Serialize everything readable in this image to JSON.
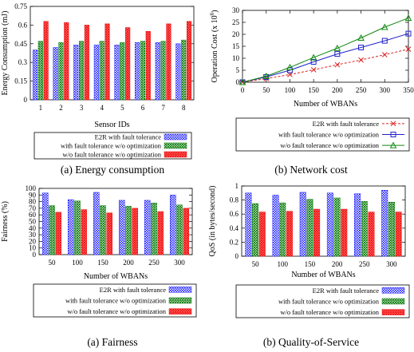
{
  "colors": {
    "blue": "#1f1fff",
    "green": "#0a7a0a",
    "red": "#ee1111",
    "lineRed": "#dd2222",
    "lineBlue": "#2222cc",
    "lineGreen": "#118811"
  },
  "captions": [
    "(a) Energy consumption",
    "(b) Network cost",
    "(a) Fairness",
    "(b) Quality-of-Service"
  ],
  "chart_data": [
    {
      "type": "bar",
      "ylabel": "Energy Consumption (mJ)",
      "xlabel": "Sensor IDs",
      "categories": [
        "1",
        "2",
        "3",
        "4",
        "5",
        "6",
        "7",
        "8"
      ],
      "yticks": [
        "0",
        "0.15",
        "0.3",
        "0.45",
        "0.6",
        "0.75"
      ],
      "ylim": [
        0,
        0.75
      ],
      "series": [
        {
          "name": "E2R with fault tolerance",
          "values": [
            0.4,
            0.42,
            0.44,
            0.44,
            0.44,
            0.46,
            0.46,
            0.45
          ]
        },
        {
          "name": "with fault tolerance w/o optimization",
          "values": [
            0.47,
            0.46,
            0.47,
            0.47,
            0.46,
            0.47,
            0.47,
            0.48
          ]
        },
        {
          "name": "w/o fault tolerance w/o optimization",
          "values": [
            0.63,
            0.62,
            0.6,
            0.61,
            0.58,
            0.55,
            0.61,
            0.63
          ]
        }
      ],
      "legend": "below"
    },
    {
      "type": "line",
      "ylabel": "Operation Cost (x 10",
      "ylabel_sup": "6",
      "ylabel_end": ")",
      "xlabel": "Number of WBANs",
      "x": [
        0,
        50,
        100,
        150,
        200,
        250,
        300,
        350
      ],
      "xticks": [
        "0",
        "50",
        "100",
        "150",
        "200",
        "250",
        "300",
        "350"
      ],
      "yticks": [
        "0",
        "5",
        "10",
        "15",
        "20",
        "25",
        "30"
      ],
      "xlim": [
        0,
        350
      ],
      "ylim": [
        0,
        30
      ],
      "series": [
        {
          "name": "E2R with fault tolerance",
          "values": [
            0,
            1.5,
            3.2,
            5.2,
            7.3,
            9.3,
            11.5,
            13.8
          ],
          "marker": "x"
        },
        {
          "name": "with fault tolerance w/o optimization",
          "values": [
            0,
            2.2,
            5.0,
            8.5,
            11.8,
            14.5,
            17.3,
            20.3
          ],
          "marker": "square"
        },
        {
          "name": "w/o fault tolerance w/o optimization",
          "values": [
            0,
            2.5,
            6.2,
            10.3,
            14.2,
            18.5,
            23.0,
            26.8
          ],
          "marker": "triangle"
        }
      ],
      "legend": "below"
    },
    {
      "type": "bar",
      "ylabel": "Fairness (%)",
      "xlabel": "Number of WBANs",
      "categories": [
        "50",
        "100",
        "150",
        "200",
        "250",
        "300"
      ],
      "yticks": [
        "0",
        "10",
        "20",
        "30",
        "40",
        "50",
        "60",
        "70",
        "80",
        "90",
        "100"
      ],
      "ylim": [
        0,
        100
      ],
      "series": [
        {
          "name": "E2R with fault tolerance",
          "values": [
            93,
            83,
            94,
            82,
            82,
            90
          ]
        },
        {
          "name": "with fault tolerance w/o optimization",
          "values": [
            74,
            81,
            74,
            73,
            78,
            75
          ]
        },
        {
          "name": "w/o fault tolerance w/o optimization",
          "values": [
            64,
            68,
            63,
            70,
            65,
            70
          ]
        }
      ],
      "legend": "below"
    },
    {
      "type": "bar",
      "ylabel": "QoS (in bytes/second)",
      "xlabel": "Number of WBANs",
      "categories": [
        "50",
        "100",
        "150",
        "200",
        "250",
        "300"
      ],
      "yticks": [
        "0",
        "0.2",
        "0.4",
        "0.6",
        "0.8",
        "1"
      ],
      "ylim": [
        0,
        1
      ],
      "series": [
        {
          "name": "E2R with fault tolerance",
          "values": [
            0.9,
            0.87,
            0.91,
            0.9,
            0.89,
            0.94
          ]
        },
        {
          "name": "with fault tolerance w/o optimization",
          "values": [
            0.75,
            0.76,
            0.81,
            0.83,
            0.78,
            0.77
          ]
        },
        {
          "name": "w/o fault tolerance w/o optimization",
          "values": [
            0.63,
            0.64,
            0.67,
            0.67,
            0.63,
            0.63
          ]
        }
      ],
      "legend": "below"
    }
  ]
}
